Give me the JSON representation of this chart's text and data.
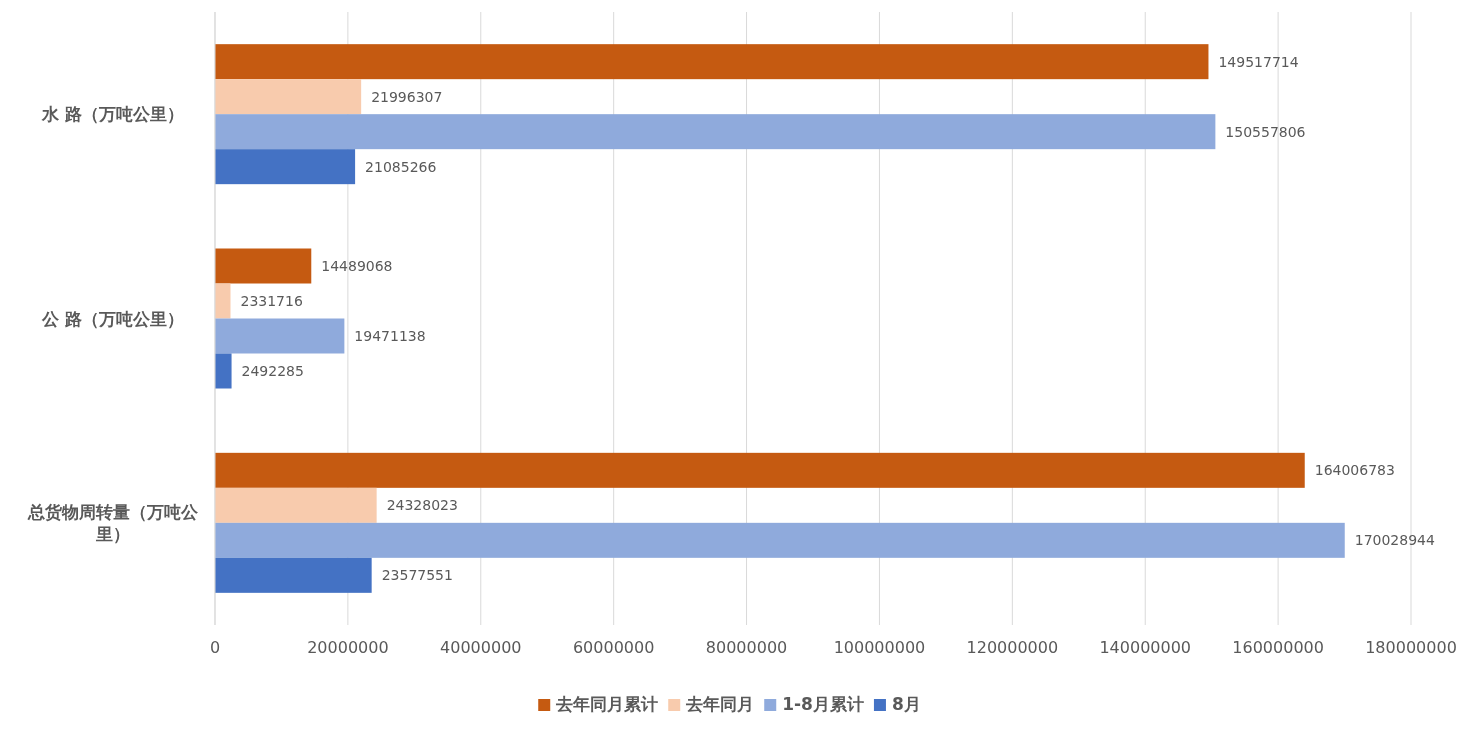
{
  "chart_data": {
    "type": "bar",
    "orientation": "horizontal",
    "categories": [
      "水 路（万吨公里）",
      "公 路（万吨公里）",
      "总货物周转量（万吨公里）"
    ],
    "series": [
      {
        "name": "去年同月累计",
        "color": "#c55a11",
        "values": [
          149517714,
          14489068,
          164006783
        ]
      },
      {
        "name": "去年同月",
        "color": "#f8cbad",
        "values": [
          21996307,
          2331716,
          24328023
        ]
      },
      {
        "name": "1-8月累计",
        "color": "#8faadc",
        "values": [
          150557806,
          19471138,
          170028944
        ]
      },
      {
        "name": "8月",
        "color": "#4472c4",
        "values": [
          21085266,
          2492285,
          23577551
        ]
      }
    ],
    "xlim": [
      0,
      180000000
    ],
    "xticks": [
      0,
      20000000,
      40000000,
      60000000,
      80000000,
      100000000,
      120000000,
      140000000,
      160000000,
      180000000
    ],
    "grid": "x",
    "legend": "bottom",
    "data_labels": true
  }
}
